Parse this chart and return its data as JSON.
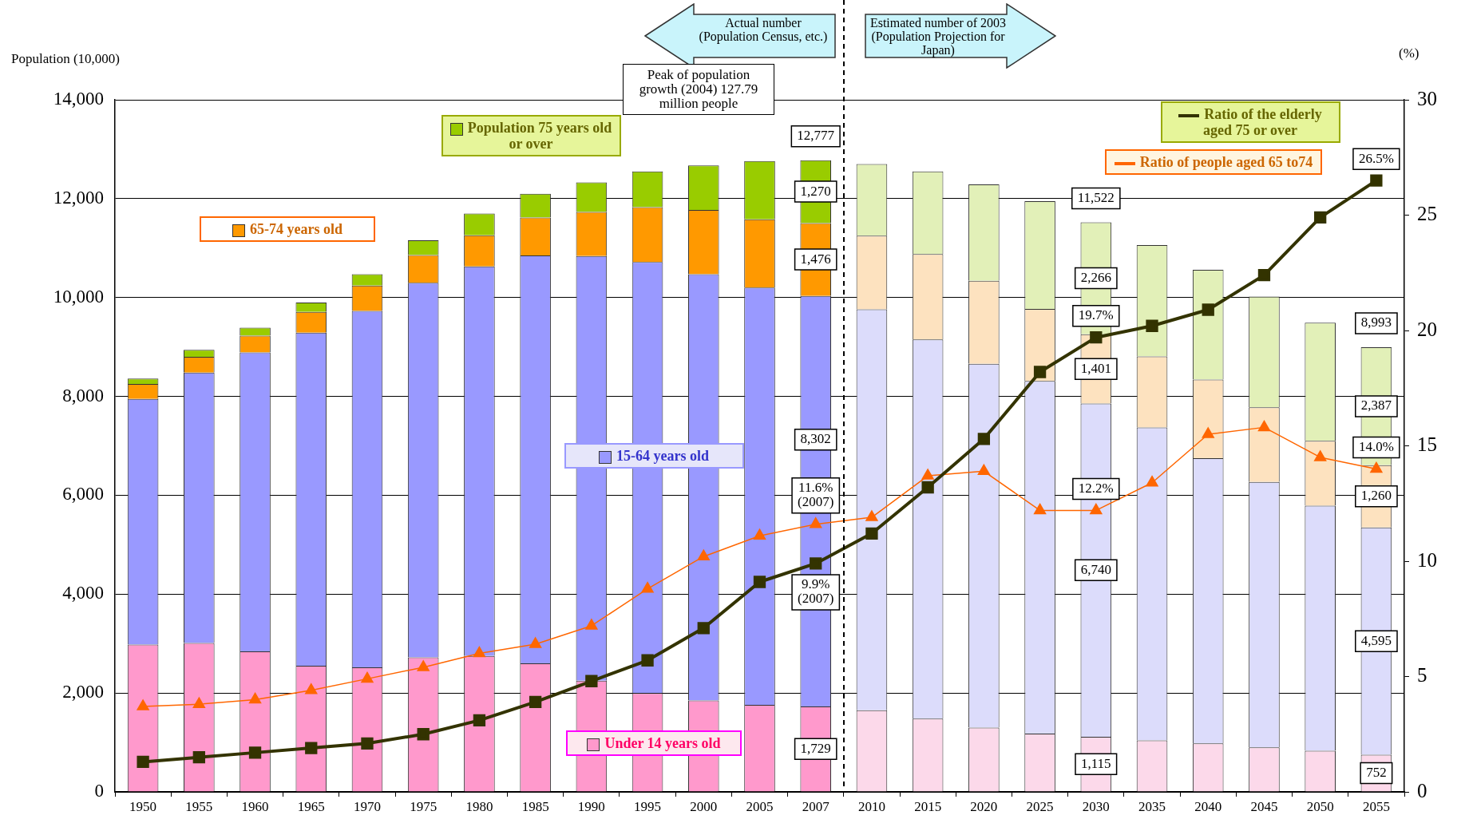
{
  "chart_data": {
    "type": "bar",
    "stacked": true,
    "ylabel": "Population (10,000)",
    "y2label": "(%)",
    "categories": [
      "1950",
      "1955",
      "1960",
      "1965",
      "1970",
      "1975",
      "1980",
      "1985",
      "1990",
      "1995",
      "2000",
      "2005",
      "2007",
      "2010",
      "2015",
      "2020",
      "2025",
      "2030",
      "2035",
      "2040",
      "2045",
      "2050",
      "2055"
    ],
    "ylim": [
      0,
      14000
    ],
    "yticks": [
      {
        "value": 0,
        "label": "0"
      },
      {
        "value": 2000,
        "label": "2,000"
      },
      {
        "value": 4000,
        "label": "4,000"
      },
      {
        "value": 6000,
        "label": "6,000"
      },
      {
        "value": 8000,
        "label": "8,000"
      },
      {
        "value": 10000,
        "label": "10,000"
      },
      {
        "value": 12000,
        "label": "12,000"
      },
      {
        "value": 14000,
        "label": "14,000"
      }
    ],
    "y2lim": [
      0,
      30
    ],
    "y2ticks": [
      0,
      5,
      10,
      15,
      20,
      25,
      30
    ],
    "grid": "y",
    "legend": "top",
    "annotations": [
      "Actual number (Population Census, etc.)",
      "Estimated number of 2003 (Population Projection for Japan)",
      "Peak of population growth (2004) 127.79 million people"
    ],
    "totals": [
      null,
      null,
      null,
      null,
      null,
      null,
      null,
      null,
      null,
      null,
      null,
      null,
      "12,777",
      null,
      null,
      null,
      null,
      "11,522",
      null,
      null,
      null,
      null,
      "8,993"
    ],
    "series": [
      {
        "name": "Under 14 years old",
        "colors": [
          "#ff99cc",
          "#ff99cc",
          "#ff99cc",
          "#ff99cc",
          "#ff99cc",
          "#ff99cc",
          "#ff99cc",
          "#ff99cc",
          "#ff99cc",
          "#ff99cc",
          "#ff99cc",
          "#ff99cc",
          "#ff99cc",
          "#fcd9ea",
          "#fcd9ea",
          "#fcd9ea",
          "#fcd9ea",
          "#fcd9ea",
          "#fcd9ea",
          "#fcd9ea",
          "#fcd9ea",
          "#fcd9ea",
          "#fcd9ea"
        ],
        "values": [
          2980,
          3010,
          2840,
          2550,
          2520,
          2720,
          2750,
          2600,
          2250,
          2000,
          1850,
          1760,
          1729,
          1650,
          1480,
          1300,
          1180,
          1115,
          1040,
          980,
          900,
          830,
          752
        ],
        "value_labels": [
          null,
          null,
          null,
          null,
          null,
          null,
          null,
          null,
          null,
          null,
          null,
          null,
          "1,729",
          null,
          null,
          null,
          null,
          "1,115",
          null,
          null,
          null,
          null,
          "752"
        ]
      },
      {
        "name": "15-64 years old",
        "colors": [
          "#9999ff",
          "#9999ff",
          "#9999ff",
          "#9999ff",
          "#9999ff",
          "#9999ff",
          "#9999ff",
          "#9999ff",
          "#9999ff",
          "#9999ff",
          "#9999ff",
          "#9999ff",
          "#9999ff",
          "#dcdcfb",
          "#dcdcfb",
          "#dcdcfb",
          "#dcdcfb",
          "#dcdcfb",
          "#dcdcfb",
          "#dcdcfb",
          "#dcdcfb",
          "#dcdcfb",
          "#dcdcfb"
        ],
        "values": [
          4970,
          5470,
          6050,
          6740,
          7210,
          7580,
          7880,
          8250,
          8590,
          8720,
          8620,
          8440,
          8302,
          8110,
          7670,
          7360,
          7130,
          6740,
          6330,
          5770,
          5370,
          4960,
          4595
        ],
        "value_labels": [
          null,
          null,
          null,
          null,
          null,
          null,
          null,
          null,
          null,
          null,
          null,
          null,
          "8,302",
          null,
          null,
          null,
          null,
          "6,740",
          null,
          null,
          null,
          null,
          "4,595"
        ]
      },
      {
        "name": "65-74 years old",
        "colors": [
          "#ff9900",
          "#ff9900",
          "#ff9900",
          "#ff9900",
          "#ff9900",
          "#ff9900",
          "#ff9900",
          "#ff9900",
          "#ff9900",
          "#ff9900",
          "#ff9900",
          "#ff9900",
          "#ff9900",
          "#fde2bf",
          "#fde2bf",
          "#fde2bf",
          "#fde2bf",
          "#fde2bf",
          "#fde2bf",
          "#fde2bf",
          "#fde2bf",
          "#fde2bf",
          "#fde2bf"
        ],
        "values": [
          300,
          320,
          340,
          420,
          510,
          560,
          630,
          770,
          890,
          1110,
          1300,
          1380,
          1476,
          1490,
          1730,
          1680,
          1460,
          1401,
          1440,
          1590,
          1510,
          1310,
          1260
        ],
        "value_labels": [
          null,
          null,
          null,
          null,
          null,
          null,
          null,
          null,
          null,
          null,
          null,
          null,
          "1,476",
          null,
          null,
          null,
          null,
          "1,401",
          null,
          null,
          null,
          null,
          "1,260"
        ]
      },
      {
        "name": "Population 75 years old or over",
        "colors": [
          "#99cc00",
          "#99cc00",
          "#99cc00",
          "#99cc00",
          "#99cc00",
          "#99cc00",
          "#99cc00",
          "#99cc00",
          "#99cc00",
          "#99cc00",
          "#99cc00",
          "#99cc00",
          "#99cc00",
          "#e2f0b8",
          "#e2f0b8",
          "#e2f0b8",
          "#e2f0b8",
          "#e2f0b8",
          "#e2f0b8",
          "#e2f0b8",
          "#e2f0b8",
          "#e2f0b8",
          "#e2f0b8"
        ],
        "values": [
          110,
          140,
          160,
          190,
          230,
          300,
          440,
          480,
          600,
          720,
          900,
          1180,
          1270,
          1450,
          1670,
          1950,
          2180,
          2266,
          2250,
          2220,
          2240,
          2390,
          2387
        ],
        "value_labels": [
          null,
          null,
          null,
          null,
          null,
          null,
          null,
          null,
          null,
          null,
          null,
          null,
          "1,270",
          null,
          null,
          null,
          null,
          "2,266",
          null,
          null,
          null,
          null,
          "2,387"
        ]
      },
      {
        "name": "Ratio of the elderly aged 75 or over",
        "type": "line",
        "axis": "y2",
        "marker": "square",
        "color": "#333300",
        "values": [
          1.3,
          1.5,
          1.7,
          1.9,
          2.1,
          2.5,
          3.1,
          3.9,
          4.8,
          5.7,
          7.1,
          9.1,
          9.9,
          11.2,
          13.2,
          15.3,
          18.2,
          19.7,
          20.2,
          20.9,
          22.4,
          24.9,
          26.5
        ],
        "value_labels": [
          null,
          null,
          null,
          null,
          null,
          null,
          null,
          null,
          null,
          null,
          null,
          null,
          "9.9% (2007)",
          null,
          null,
          null,
          null,
          "19.7%",
          null,
          null,
          null,
          null,
          "26.5%"
        ]
      },
      {
        "name": "Ratio of people aged 65 to74",
        "type": "line",
        "axis": "y2",
        "marker": "triangle",
        "color": "#ff6600",
        "values": [
          3.7,
          3.8,
          4.0,
          4.4,
          4.9,
          5.4,
          6.0,
          6.4,
          7.2,
          8.8,
          10.2,
          11.1,
          11.6,
          11.9,
          13.7,
          13.9,
          12.2,
          12.2,
          13.4,
          15.5,
          15.8,
          14.5,
          14.0
        ],
        "value_labels": [
          null,
          null,
          null,
          null,
          null,
          null,
          null,
          null,
          null,
          null,
          null,
          null,
          "11.6% (2007)",
          null,
          null,
          null,
          null,
          "12.2%",
          null,
          null,
          null,
          null,
          "14.0%"
        ]
      }
    ]
  }
}
